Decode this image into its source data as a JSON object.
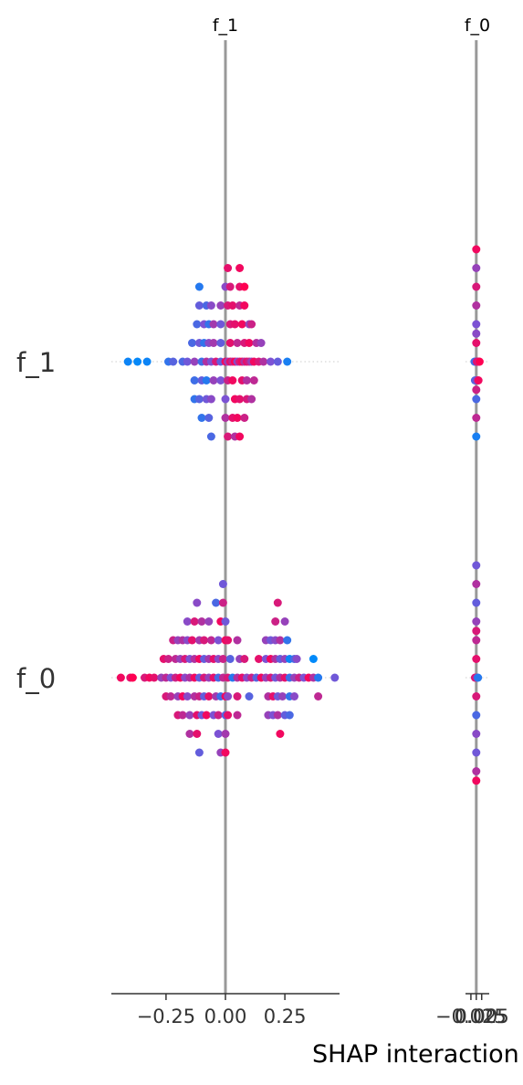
{
  "chart_data": {
    "type": "scatter",
    "title": "",
    "xlabel": "SHAP interaction value",
    "features": [
      "f_1",
      "f_0"
    ],
    "panels": [
      {
        "title": "f_1",
        "xlim": [
          -0.48,
          0.48
        ],
        "xticks": [
          -0.25,
          0.0,
          0.25
        ],
        "xtick_labels": [
          "−0.25",
          "0.00",
          "0.25"
        ],
        "rows": [
          {
            "feature": "f_1",
            "values": [
              -0.41,
              -0.37,
              -0.33,
              -0.24,
              -0.22,
              -0.18,
              -0.16,
              -0.13,
              -0.1,
              -0.08,
              -0.06,
              -0.04,
              -0.02,
              0.0,
              0.01,
              0.02,
              0.03,
              0.04,
              0.05,
              0.06,
              0.07,
              0.08,
              0.09,
              0.1,
              0.11,
              0.12,
              0.14,
              0.16,
              0.19,
              0.22,
              0.26,
              -0.14,
              -0.11,
              -0.09,
              -0.07,
              -0.05,
              -0.02,
              0.02,
              0.05,
              0.08,
              0.1,
              0.13,
              0.15,
              -0.13,
              -0.1,
              -0.08,
              -0.05,
              -0.02,
              0.01,
              0.03,
              0.07,
              0.09,
              0.12,
              -0.12,
              -0.09,
              -0.07,
              -0.05,
              -0.02,
              0.02,
              0.04,
              0.07,
              0.1,
              0.11,
              -0.13,
              -0.11,
              -0.08,
              -0.06,
              0.0,
              0.04,
              0.06,
              0.09,
              0.11,
              -0.11,
              -0.08,
              -0.06,
              -0.02,
              0.01,
              0.03,
              0.06,
              0.08,
              -0.1,
              -0.07,
              0.0,
              0.03,
              0.05,
              0.08,
              -0.11,
              0.0,
              0.02,
              0.06,
              0.08,
              -0.06,
              0.01,
              0.04,
              0.06,
              0.01,
              0.06
            ],
            "colors": [
              0.05,
              0.02,
              0.05,
              0.2,
              0.35,
              0.3,
              0.45,
              0.6,
              0.25,
              0.7,
              0.5,
              0.85,
              0.4,
              0.95,
              0.6,
              0.9,
              0.75,
              1.0,
              0.55,
              0.85,
              0.95,
              0.7,
              0.9,
              0.8,
              0.6,
              0.95,
              0.85,
              0.7,
              0.5,
              0.4,
              0.1,
              0.3,
              0.45,
              0.2,
              0.55,
              0.65,
              0.4,
              0.9,
              0.75,
              0.85,
              0.95,
              0.7,
              0.6,
              0.25,
              0.4,
              0.15,
              0.6,
              0.5,
              0.8,
              0.95,
              0.9,
              0.7,
              0.75,
              0.3,
              0.5,
              0.2,
              0.65,
              0.45,
              0.85,
              0.9,
              0.95,
              0.6,
              0.8,
              0.2,
              0.35,
              0.45,
              0.55,
              0.5,
              0.95,
              0.9,
              0.85,
              0.7,
              0.4,
              0.3,
              0.55,
              0.6,
              0.85,
              0.9,
              0.75,
              0.95,
              0.2,
              0.35,
              0.7,
              0.9,
              0.95,
              0.8,
              0.15,
              0.55,
              0.85,
              0.9,
              1.0,
              0.3,
              0.85,
              0.7,
              0.95,
              0.9,
              0.95
            ],
            "offsets": [
              0,
              0,
              0,
              0,
              0,
              0,
              0,
              0,
              0,
              0,
              0,
              0,
              0,
              0,
              0,
              0,
              0,
              0,
              0,
              0,
              0,
              0,
              0,
              0,
              0,
              0,
              0,
              0,
              0,
              0,
              0,
              -1,
              -1,
              -1,
              -1,
              -1,
              -1,
              -1,
              -1,
              -1,
              -1,
              -1,
              -1,
              1,
              1,
              1,
              1,
              1,
              1,
              1,
              1,
              1,
              1,
              -2,
              -2,
              -2,
              -2,
              -2,
              -2,
              -2,
              -2,
              -2,
              -2,
              2,
              2,
              2,
              2,
              2,
              2,
              2,
              2,
              2,
              -3,
              -3,
              -3,
              -3,
              -3,
              -3,
              -3,
              -3,
              3,
              3,
              3,
              3,
              3,
              3,
              -4,
              -4,
              -4,
              -4,
              -4,
              4,
              4,
              4,
              4,
              -5,
              -5
            ]
          },
          {
            "feature": "f_0",
            "values": [
              -0.44,
              -0.4,
              -0.39,
              -0.34,
              -0.32,
              -0.3,
              -0.27,
              -0.25,
              -0.23,
              -0.21,
              -0.19,
              -0.17,
              -0.15,
              -0.13,
              -0.11,
              -0.09,
              -0.07,
              -0.05,
              -0.03,
              -0.01,
              0.01,
              0.03,
              0.05,
              0.07,
              0.09,
              0.11,
              0.13,
              0.15,
              0.17,
              0.19,
              0.21,
              0.23,
              0.25,
              0.27,
              0.29,
              0.31,
              0.33,
              0.35,
              0.37,
              0.39,
              0.46,
              -0.26,
              -0.24,
              -0.21,
              -0.19,
              -0.17,
              -0.15,
              -0.13,
              -0.11,
              -0.09,
              -0.07,
              -0.05,
              -0.03,
              -0.01,
              0.02,
              0.06,
              0.08,
              0.14,
              0.17,
              0.19,
              0.21,
              0.23,
              0.25,
              0.27,
              0.29,
              0.3,
              0.37,
              -0.25,
              -0.23,
              -0.2,
              -0.18,
              -0.16,
              -0.13,
              -0.11,
              -0.09,
              -0.07,
              -0.04,
              -0.02,
              0.0,
              0.01,
              0.05,
              0.1,
              0.18,
              0.2,
              0.22,
              0.24,
              0.27,
              0.29,
              0.39,
              -0.22,
              -0.2,
              -0.18,
              -0.16,
              -0.14,
              -0.11,
              -0.09,
              -0.06,
              -0.03,
              0.0,
              0.01,
              0.05,
              0.17,
              0.19,
              0.21,
              0.23,
              0.26,
              -0.2,
              -0.18,
              -0.15,
              -0.12,
              -0.1,
              -0.08,
              -0.05,
              -0.03,
              0.0,
              0.01,
              0.05,
              0.18,
              0.2,
              0.22,
              0.25,
              0.27,
              -0.16,
              -0.13,
              -0.1,
              -0.07,
              -0.02,
              0.0,
              0.21,
              0.25,
              -0.15,
              -0.12,
              -0.03,
              0.0,
              0.23,
              -0.12,
              -0.04,
              -0.01,
              0.22,
              -0.11,
              -0.02,
              0.0,
              -0.01
            ],
            "colors": [
              0.95,
              0.9,
              1.0,
              0.85,
              0.95,
              0.9,
              0.6,
              0.75,
              0.5,
              0.8,
              0.95,
              0.55,
              0.7,
              0.95,
              0.4,
              0.85,
              0.6,
              0.9,
              0.3,
              0.75,
              0.85,
              0.15,
              0.7,
              0.9,
              0.55,
              0.8,
              0.35,
              0.95,
              0.6,
              0.85,
              0.45,
              0.7,
              0.9,
              0.25,
              0.6,
              0.8,
              0.5,
              0.95,
              0.7,
              0.15,
              0.45,
              0.9,
              0.8,
              0.75,
              0.6,
              0.85,
              0.5,
              0.7,
              0.95,
              0.4,
              0.65,
              0.9,
              0.55,
              0.8,
              0.35,
              0.6,
              0.85,
              0.9,
              0.5,
              0.95,
              0.7,
              0.4,
              0.6,
              0.05,
              0.3,
              0.55,
              0.0,
              0.85,
              0.75,
              0.6,
              0.95,
              0.55,
              0.7,
              0.8,
              0.4,
              0.9,
              0.65,
              0.25,
              0.95,
              0.55,
              0.85,
              0.35,
              0.7,
              0.9,
              0.45,
              0.6,
              0.2,
              0.55,
              0.75,
              0.8,
              0.6,
              0.7,
              0.55,
              0.9,
              0.65,
              0.85,
              0.75,
              0.5,
              0.95,
              0.9,
              0.7,
              0.6,
              0.45,
              0.55,
              0.7,
              0.2,
              0.85,
              0.75,
              0.6,
              0.9,
              0.45,
              0.95,
              0.5,
              0.8,
              0.35,
              0.9,
              0.75,
              0.6,
              0.5,
              0.7,
              0.4,
              0.3,
              0.55,
              0.85,
              0.7,
              0.6,
              0.95,
              0.45,
              0.8,
              0.6,
              0.7,
              0.9,
              0.5,
              0.65,
              0.95,
              0.55,
              0.3,
              0.8,
              0.85,
              0.4,
              0.6,
              0.95,
              0.45,
              0.1,
              0.35,
              0.6
            ],
            "offsets": [
              0,
              0,
              0,
              0,
              0,
              0,
              0,
              0,
              0,
              0,
              0,
              0,
              0,
              0,
              0,
              0,
              0,
              0,
              0,
              0,
              0,
              0,
              0,
              0,
              0,
              0,
              0,
              0,
              0,
              0,
              0,
              0,
              0,
              0,
              0,
              0,
              0,
              0,
              0,
              0,
              0,
              -1,
              -1,
              -1,
              -1,
              -1,
              -1,
              -1,
              -1,
              -1,
              -1,
              -1,
              -1,
              -1,
              -1,
              -1,
              -1,
              -1,
              -1,
              -1,
              -1,
              -1,
              -1,
              -1,
              -1,
              -1,
              -1,
              1,
              1,
              1,
              1,
              1,
              1,
              1,
              1,
              1,
              1,
              1,
              1,
              1,
              1,
              1,
              1,
              1,
              1,
              1,
              1,
              1,
              1,
              -2,
              -2,
              -2,
              -2,
              -2,
              -2,
              -2,
              -2,
              -2,
              -2,
              -2,
              -2,
              -2,
              -2,
              -2,
              -2,
              -2,
              2,
              2,
              2,
              2,
              2,
              2,
              2,
              2,
              2,
              2,
              2,
              2,
              2,
              2,
              2,
              2,
              -3,
              -3,
              -3,
              -3,
              -3,
              -3,
              -3,
              -3,
              3,
              3,
              3,
              3,
              3,
              -4,
              -4,
              -4,
              -4,
              4,
              4,
              4,
              -5
            ]
          }
        ]
      },
      {
        "title": "f_0",
        "xlim": [
          -0.05,
          0.06
        ],
        "xticks": [
          -0.025,
          0.0,
          0.025
        ],
        "xtick_labels": [
          "−0.025",
          "0.00",
          "0.025"
        ],
        "rows": [
          {
            "feature": "f_1",
            "values": [
              0.0,
              0.0,
              0.0,
              0.0,
              0.0,
              0.0,
              0.0,
              0.0,
              0.0,
              0.0,
              -0.008,
              -0.005,
              0.003,
              0.006,
              0.009,
              0.012,
              0.015,
              -0.006,
              0.005,
              0.01,
              0.0,
              0.0
            ],
            "colors": [
              0.95,
              0.6,
              0.85,
              0.7,
              0.5,
              0.9,
              0.4,
              0.3,
              0.75,
              0.1,
              0.2,
              0.3,
              0.85,
              0.95,
              0.9,
              0.7,
              1.0,
              0.35,
              0.6,
              0.95,
              0.55,
              0.8
            ],
            "offsets": [
              -6,
              -5,
              -4,
              -3,
              -2,
              -1,
              1,
              2,
              3,
              4,
              0,
              0,
              0,
              0,
              0,
              0,
              0,
              1,
              1,
              1,
              -1.5,
              1.5
            ]
          },
          {
            "feature": "f_0",
            "values": [
              0.0,
              0.0,
              0.0,
              0.0,
              0.0,
              0.0,
              0.0,
              0.0,
              0.0,
              0.0,
              0.0,
              0.0,
              -0.006,
              -0.002,
              0.004,
              0.008,
              0.0
            ],
            "colors": [
              0.45,
              0.7,
              0.4,
              0.6,
              0.75,
              0.9,
              0.85,
              0.3,
              0.55,
              0.45,
              0.7,
              0.95,
              0.8,
              0.9,
              0.6,
              0.15,
              0.85
            ],
            "offsets": [
              -6,
              -5,
              -4,
              -3,
              -2,
              -1,
              1,
              2,
              3,
              4,
              5,
              5.5,
              0,
              0,
              0,
              0,
              -2.5
            ]
          }
        ]
      }
    ]
  }
}
